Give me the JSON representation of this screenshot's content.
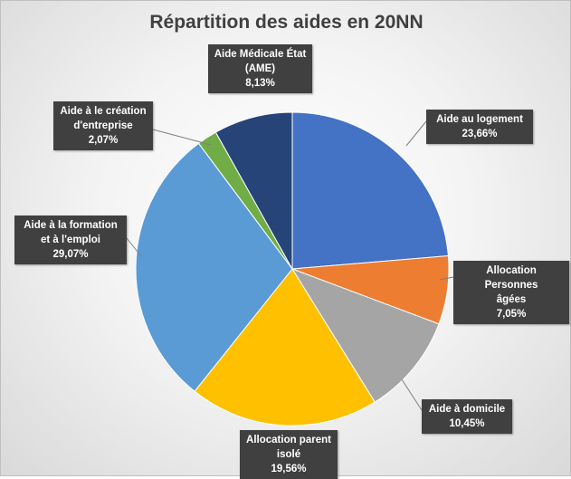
{
  "chart_data": {
    "type": "pie",
    "title": "Répartition des aides en 20NN",
    "slices": [
      {
        "label_lines": [
          "Aide au logement"
        ],
        "value_label": "23,66%",
        "value": 23.66,
        "color": "#4472C4"
      },
      {
        "label_lines": [
          "Allocation Personnes",
          "âgées"
        ],
        "value_label": "7,05%",
        "value": 7.05,
        "color": "#ED7D31"
      },
      {
        "label_lines": [
          "Aide à domicile"
        ],
        "value_label": "10,45%",
        "value": 10.45,
        "color": "#A5A5A5"
      },
      {
        "label_lines": [
          "Allocation parent",
          "isolé"
        ],
        "value_label": "19,56%",
        "value": 19.56,
        "color": "#FFC000"
      },
      {
        "label_lines": [
          "Aide à la formation",
          "et à l'emploi"
        ],
        "value_label": "29,07%",
        "value": 29.07,
        "color": "#5B9BD5"
      },
      {
        "label_lines": [
          "Aide à le création",
          "d'entreprise"
        ],
        "value_label": "2,07%",
        "value": 2.07,
        "color": "#70AD47"
      },
      {
        "label_lines": [
          "Aide Médicale État",
          "(AME)"
        ],
        "value_label": "8,13%",
        "value": 8.13,
        "color": "#264478"
      }
    ],
    "legend": "none",
    "data_labels": "callout"
  }
}
